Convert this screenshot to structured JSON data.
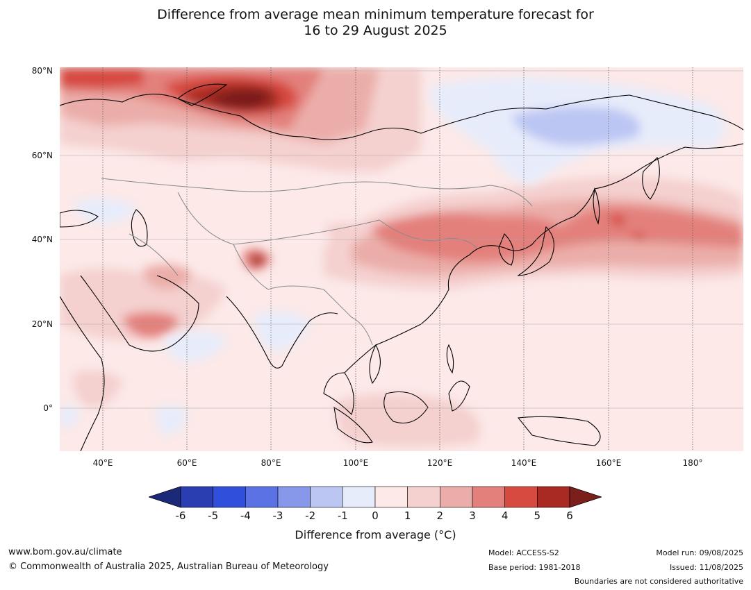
{
  "title": {
    "line1": "Difference from average mean minimum temperature forecast for",
    "line2": "16 to 29 August 2025"
  },
  "map": {
    "region": "Asia",
    "lon_range": [
      30,
      191
    ],
    "lat_range": [
      -10,
      80
    ],
    "lat_ticks": [
      "80°N",
      "60°N",
      "40°N",
      "20°N",
      "0°"
    ],
    "lon_ticks": [
      "40°E",
      "60°E",
      "80°E",
      "100°E",
      "120°E",
      "140°E",
      "160°E",
      "180°"
    ]
  },
  "colorbar": {
    "ticks": [
      "-6",
      "-5",
      "-4",
      "-3",
      "-2",
      "-1",
      "0",
      "1",
      "2",
      "3",
      "4",
      "5",
      "6"
    ],
    "colors": [
      "#1b2a78",
      "#2a3eb1",
      "#3050dc",
      "#5b72e4",
      "#8798ea",
      "#bcc6f3",
      "#e7ecfb",
      "#fce9e8",
      "#f4d0cf",
      "#ebada9",
      "#e3807b",
      "#d64a40",
      "#a82a22",
      "#7a1f1a"
    ],
    "label": "Difference from average (°C)"
  },
  "footer": {
    "url": "www.bom.gov.au/climate",
    "copyright": "© Commonwealth of Australia 2025, Australian Bureau of Meteorology",
    "model": "Model: ACCESS-S2",
    "base_period": "Base period: 1981-2018",
    "model_run": "Model run: 09/08/2025",
    "issued": "Issued: 11/08/2025",
    "disclaimer": "Boundaries are not considered authoritative"
  }
}
